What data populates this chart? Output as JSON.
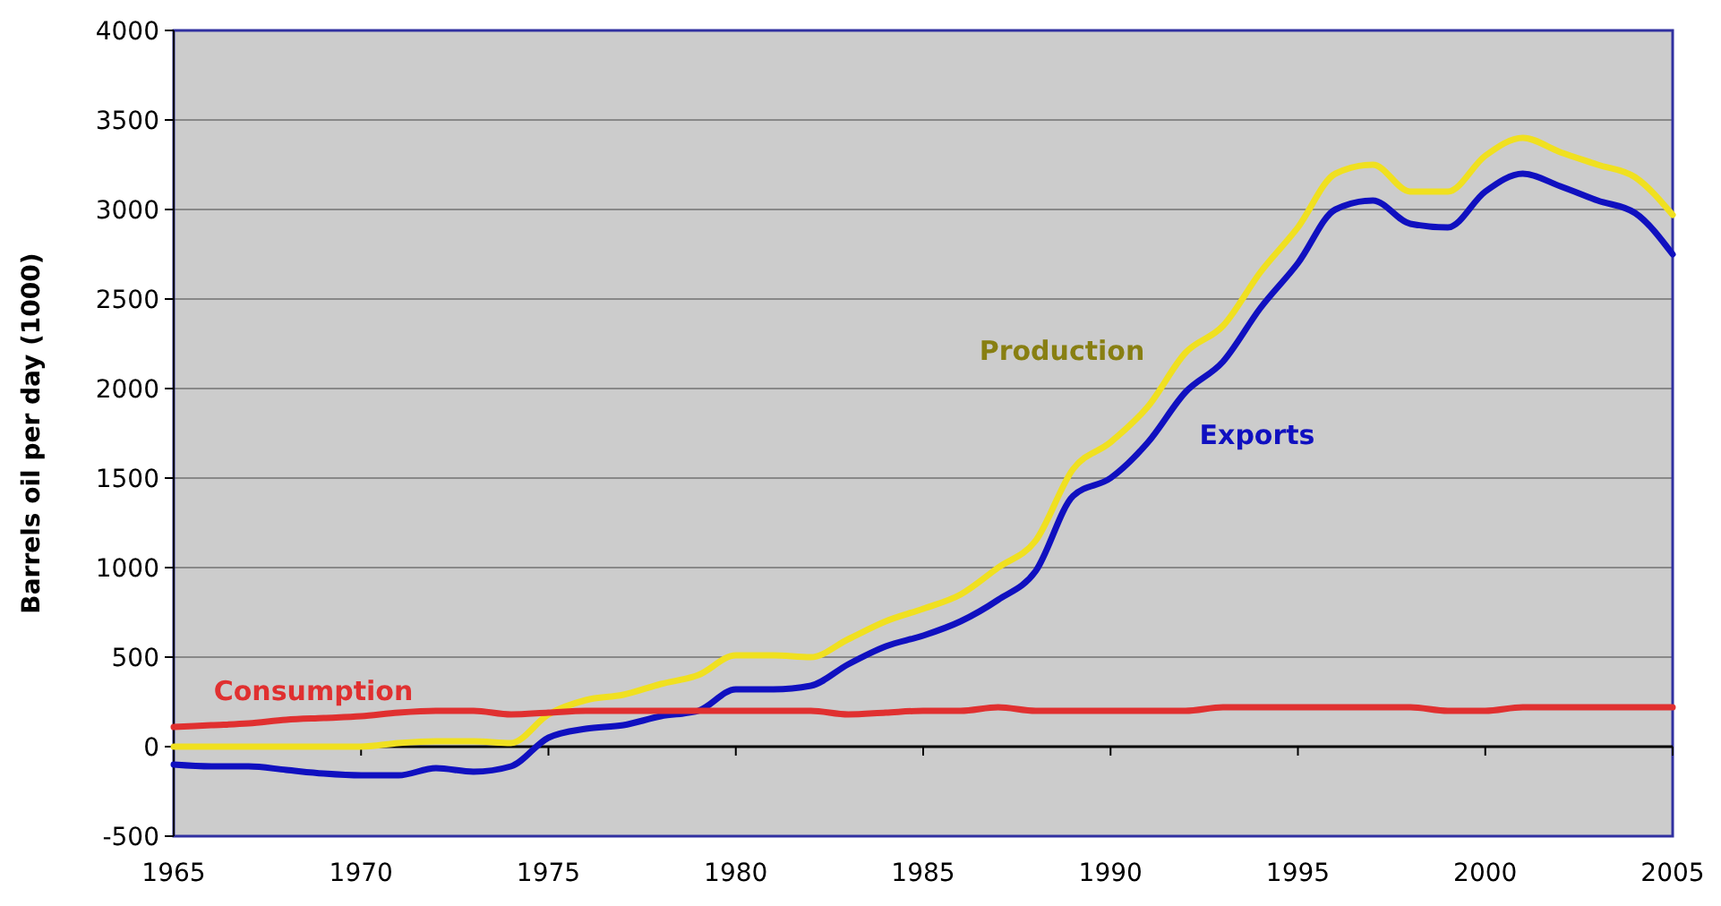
{
  "chart_data": {
    "type": "line",
    "ylabel": "Barrels oil per day (1000)",
    "x": [
      1965,
      1966,
      1967,
      1968,
      1969,
      1970,
      1971,
      1972,
      1973,
      1974,
      1975,
      1976,
      1977,
      1978,
      1979,
      1980,
      1981,
      1982,
      1983,
      1984,
      1985,
      1986,
      1987,
      1988,
      1989,
      1990,
      1991,
      1992,
      1993,
      1994,
      1995,
      1996,
      1997,
      1998,
      1999,
      2000,
      2001,
      2002,
      2003,
      2004,
      2005
    ],
    "series": [
      {
        "name": "Production",
        "color": "#f0e020",
        "values": [
          0,
          0,
          0,
          0,
          0,
          0,
          20,
          30,
          30,
          20,
          180,
          260,
          290,
          350,
          400,
          510,
          510,
          500,
          600,
          700,
          770,
          850,
          1000,
          1150,
          1550,
          1700,
          1900,
          2200,
          2350,
          2650,
          2900,
          3200,
          3250,
          3100,
          3100,
          3300,
          3400,
          3320,
          3250,
          3180,
          2970
        ]
      },
      {
        "name": "Exports",
        "color": "#1010c0",
        "values": [
          -100,
          -110,
          -110,
          -130,
          -150,
          -160,
          -160,
          -120,
          -140,
          -110,
          50,
          100,
          120,
          170,
          200,
          320,
          320,
          340,
          460,
          560,
          620,
          700,
          820,
          980,
          1400,
          1500,
          1700,
          1980,
          2150,
          2450,
          2700,
          3000,
          3050,
          2920,
          2900,
          3100,
          3200,
          3130,
          3050,
          2980,
          2750
        ]
      },
      {
        "name": "Consumption",
        "color": "#e03030",
        "values": [
          110,
          120,
          130,
          150,
          160,
          170,
          190,
          200,
          200,
          180,
          190,
          200,
          200,
          200,
          200,
          200,
          200,
          200,
          180,
          190,
          200,
          200,
          220,
          200,
          200,
          200,
          200,
          200,
          220,
          220,
          220,
          220,
          220,
          220,
          200,
          200,
          220,
          220,
          220,
          220,
          220
        ]
      }
    ],
    "xlim": [
      1965,
      2005
    ],
    "xticks": [
      1965,
      1970,
      1975,
      1980,
      1985,
      1990,
      1995,
      2000,
      2005
    ],
    "ylim": [
      -500,
      4000
    ],
    "yticks": [
      -500,
      0,
      500,
      1000,
      1500,
      2000,
      2500,
      3000,
      3500,
      4000
    ],
    "grid": "y",
    "legend": false,
    "marker": "none",
    "line_style": "solid"
  }
}
